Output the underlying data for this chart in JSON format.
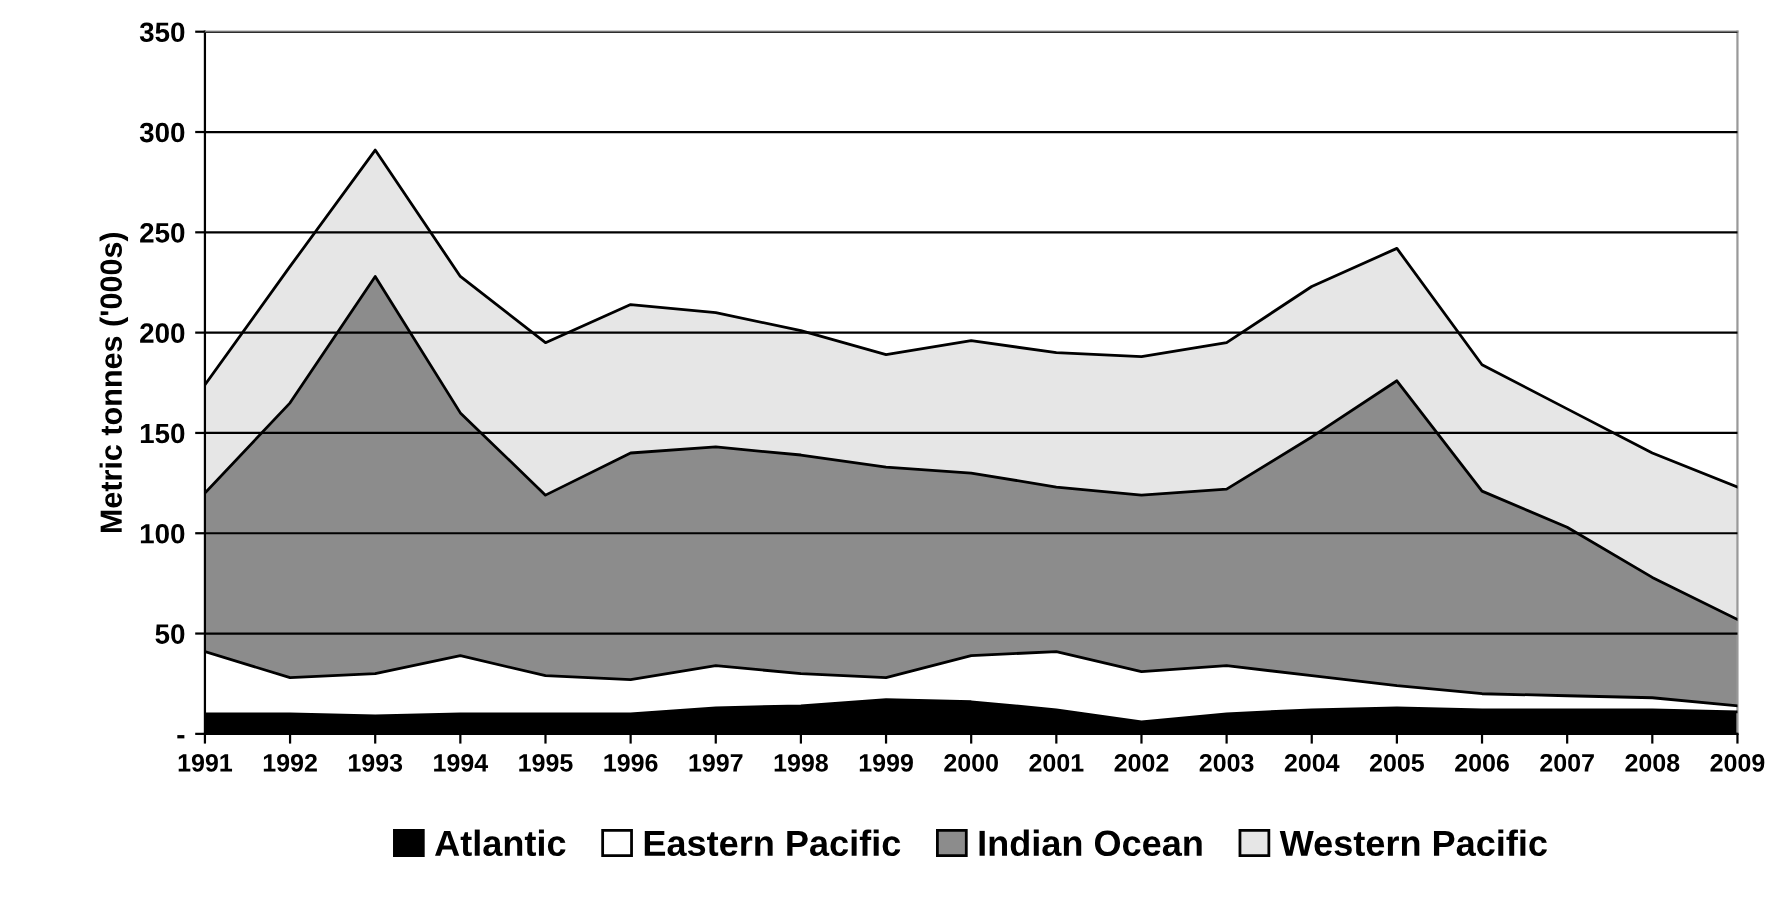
{
  "chart_data": {
    "type": "area",
    "stacked": true,
    "ylabel": "Metric tonnes ('000s)",
    "categories": [
      "1991",
      "1992",
      "1993",
      "1994",
      "1995",
      "1996",
      "1997",
      "1998",
      "1999",
      "2000",
      "2001",
      "2002",
      "2003",
      "2004",
      "2005",
      "2006",
      "2007",
      "2008",
      "2009"
    ],
    "series": [
      {
        "name": "Atlantic",
        "color": "#000000",
        "values": [
          10,
          10,
          9,
          10,
          10,
          10,
          13,
          14,
          17,
          16,
          12,
          6,
          10,
          12,
          13,
          12,
          12,
          12,
          11
        ]
      },
      {
        "name": "Eastern Pacific",
        "color": "#ffffff",
        "values": [
          31,
          18,
          21,
          29,
          19,
          17,
          21,
          16,
          11,
          23,
          29,
          25,
          24,
          17,
          11,
          8,
          7,
          6,
          3
        ]
      },
      {
        "name": "Indian Ocean",
        "color": "#8c8c8c",
        "values": [
          79,
          137,
          198,
          121,
          90,
          113,
          109,
          109,
          105,
          91,
          82,
          88,
          88,
          119,
          152,
          101,
          84,
          60,
          43
        ]
      },
      {
        "name": "Western Pacific",
        "color": "#e6e6e6",
        "values": [
          54,
          68,
          63,
          68,
          76,
          74,
          67,
          62,
          56,
          66,
          67,
          69,
          73,
          75,
          66,
          63,
          59,
          62,
          66
        ]
      }
    ],
    "ylim": [
      0,
      350
    ],
    "yticks": [
      {
        "value": 0,
        "label": "-"
      },
      50,
      100,
      150,
      200,
      250,
      300,
      350
    ],
    "grid": "y",
    "legend": "bottom"
  }
}
